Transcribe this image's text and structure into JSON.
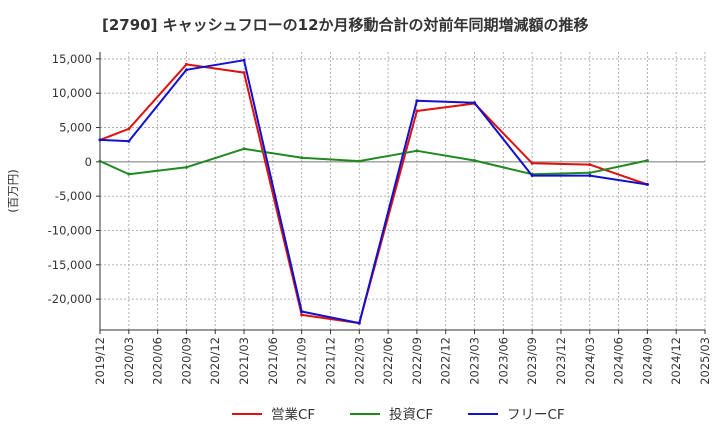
{
  "chart_data": {
    "type": "line",
    "title": "[2790]  キャッシュフローの12か月移動合計の対前年同期増減額の推移",
    "xlabel": "",
    "ylabel": "(百万円)",
    "ylim": [
      -24500,
      16000
    ],
    "yticks": [
      15000,
      10000,
      5000,
      0,
      -5000,
      -10000,
      -15000,
      -20000
    ],
    "ytick_labels": [
      "15,000",
      "10,000",
      "5,000",
      "0",
      "-5,000",
      "-10,000",
      "-15,000",
      "-20,000"
    ],
    "grid": true,
    "legend_position": "bottom",
    "categories": [
      "2019/12",
      "2020/03",
      "2020/06",
      "2020/09",
      "2020/12",
      "2021/03",
      "2021/06",
      "2021/09",
      "2021/12",
      "2022/03",
      "2022/06",
      "2022/09",
      "2022/12",
      "2023/03",
      "2023/06",
      "2023/09",
      "2023/12",
      "2024/03",
      "2024/06",
      "2024/09",
      "2024/12",
      "2025/03"
    ],
    "series": [
      {
        "name": "営業CF",
        "color": "#dd1111",
        "values": [
          3200,
          4800,
          null,
          14200,
          null,
          13000,
          null,
          -22300,
          null,
          -23500,
          null,
          7400,
          null,
          8500,
          null,
          -200,
          null,
          -400,
          null,
          -3300,
          null,
          null
        ]
      },
      {
        "name": "投資CF",
        "color": "#228822",
        "values": [
          100,
          -1800,
          null,
          -800,
          null,
          1900,
          null,
          600,
          null,
          100,
          null,
          1600,
          null,
          200,
          null,
          -1800,
          null,
          -1600,
          null,
          200,
          null,
          null
        ]
      },
      {
        "name": "フリーCF",
        "color": "#1111cc",
        "values": [
          3200,
          3000,
          null,
          13400,
          null,
          14800,
          null,
          -21800,
          null,
          -23500,
          null,
          8900,
          null,
          8600,
          null,
          -2000,
          null,
          -2000,
          null,
          -3300,
          null,
          null
        ]
      }
    ]
  }
}
